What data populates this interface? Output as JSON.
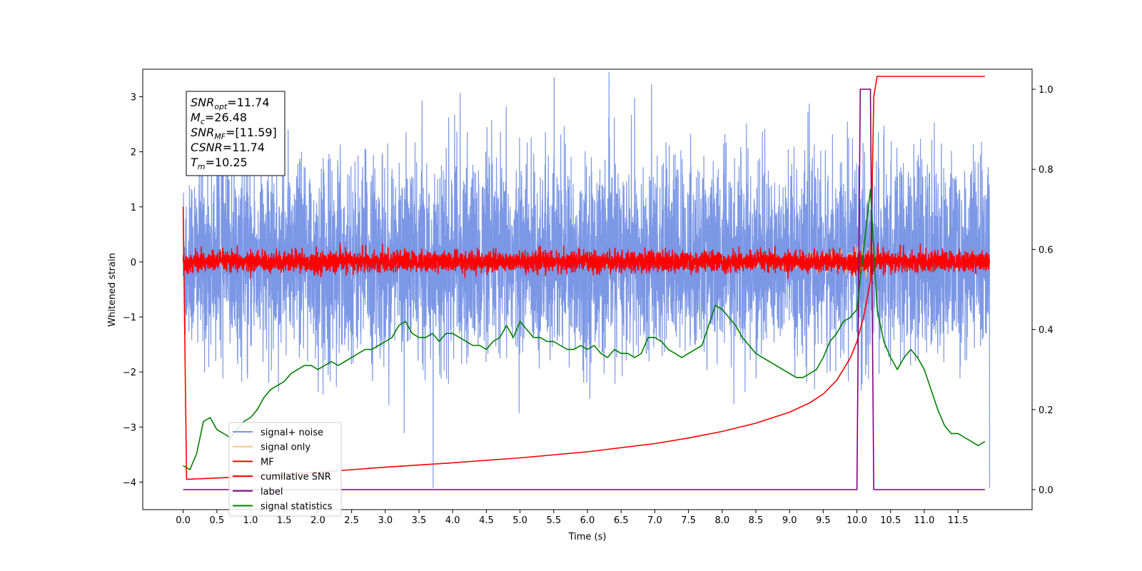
{
  "chart_data": {
    "type": "line",
    "xlabel": "Time (s)",
    "ylabel": "Whitened strain",
    "x_range": [
      0,
      12
    ],
    "xlim": [
      -0.6,
      12.6
    ],
    "ylim_left": [
      -4.5,
      3.5
    ],
    "ylim_right": [
      -0.05,
      1.05
    ],
    "x_ticks": [
      "0.0",
      "0.5",
      "1.0",
      "1.5",
      "2.0",
      "2.5",
      "3.0",
      "3.5",
      "4.0",
      "4.5",
      "5.0",
      "5.5",
      "6.0",
      "6.5",
      "7.0",
      "7.5",
      "8.0",
      "8.5",
      "9.0",
      "9.5",
      "10.0",
      "10.5",
      "11.0",
      "11.5"
    ],
    "y_ticks_left": [
      "−4",
      "−3",
      "−2",
      "−1",
      "0",
      "1",
      "2",
      "3"
    ],
    "y_ticks_right": [
      "0.0",
      "0.2",
      "0.4",
      "0.6",
      "0.8",
      "1.0"
    ],
    "grid": false,
    "legend_position": "lower-left",
    "series": [
      {
        "name": "signal+ noise",
        "color": "#7b97e6",
        "axis": "left",
        "kind": "noise",
        "band_lower": [
          -1.1,
          -1.9
        ],
        "band_upper": [
          1.2,
          2.3
        ],
        "extremes": [
          -4.1,
          3.35
        ]
      },
      {
        "name": "signal only",
        "color": "#f5c77e",
        "axis": "left",
        "kind": "chirp",
        "merger_time": 10.25,
        "peak_amplitude": 0.9
      },
      {
        "name": "MF",
        "color": "#ff0000",
        "axis": "left",
        "kind": "noise",
        "band_lower": [
          -0.12,
          -0.06
        ],
        "band_upper": [
          0.12,
          0.3
        ]
      },
      {
        "name": "cumilative SNR",
        "color": "#ff0000",
        "axis": "left",
        "x": [
          0.0,
          0.05,
          1.0,
          2.0,
          3.0,
          4.0,
          5.0,
          6.0,
          7.0,
          7.5,
          8.0,
          8.5,
          9.0,
          9.3,
          9.5,
          9.7,
          9.9,
          10.0,
          10.1,
          10.2,
          10.25,
          10.3,
          11.9
        ],
        "y": [
          1.0,
          -3.95,
          -3.9,
          -3.82,
          -3.73,
          -3.65,
          -3.56,
          -3.45,
          -3.3,
          -3.2,
          -3.08,
          -2.93,
          -2.73,
          -2.56,
          -2.4,
          -2.15,
          -1.75,
          -1.45,
          -1.0,
          -0.35,
          3.0,
          3.37,
          3.37
        ]
      },
      {
        "name": "label",
        "color": "#800080",
        "axis": "right",
        "x": [
          0.0,
          10.0,
          10.05,
          10.2,
          10.25,
          11.9
        ],
        "y": [
          0.0,
          0.0,
          1.0,
          1.0,
          0.0,
          0.0
        ]
      },
      {
        "name": "signal statistics",
        "color": "#008000",
        "axis": "right",
        "x": [
          0.0,
          0.1,
          0.2,
          0.3,
          0.4,
          0.5,
          0.6,
          0.7,
          0.8,
          0.9,
          1.0,
          1.1,
          1.2,
          1.3,
          1.4,
          1.5,
          1.6,
          1.7,
          1.8,
          1.9,
          2.0,
          2.1,
          2.2,
          2.3,
          2.4,
          2.5,
          2.6,
          2.7,
          2.8,
          2.9,
          3.0,
          3.1,
          3.2,
          3.3,
          3.4,
          3.5,
          3.6,
          3.7,
          3.8,
          3.9,
          4.0,
          4.1,
          4.2,
          4.3,
          4.4,
          4.5,
          4.6,
          4.7,
          4.8,
          4.9,
          5.0,
          5.1,
          5.2,
          5.3,
          5.4,
          5.5,
          5.6,
          5.7,
          5.8,
          5.9,
          6.0,
          6.1,
          6.2,
          6.3,
          6.4,
          6.5,
          6.6,
          6.7,
          6.8,
          6.9,
          7.0,
          7.1,
          7.2,
          7.3,
          7.4,
          7.5,
          7.6,
          7.7,
          7.8,
          7.9,
          8.0,
          8.1,
          8.2,
          8.3,
          8.4,
          8.5,
          8.6,
          8.7,
          8.8,
          8.9,
          9.0,
          9.1,
          9.2,
          9.3,
          9.4,
          9.5,
          9.6,
          9.7,
          9.8,
          9.9,
          10.0,
          10.1,
          10.2,
          10.3,
          10.4,
          10.5,
          10.6,
          10.7,
          10.8,
          10.9,
          11.0,
          11.1,
          11.2,
          11.3,
          11.4,
          11.5,
          11.6,
          11.7,
          11.8,
          11.9
        ],
        "y": [
          0.06,
          0.05,
          0.09,
          0.17,
          0.18,
          0.15,
          0.14,
          0.13,
          0.15,
          0.17,
          0.18,
          0.2,
          0.23,
          0.25,
          0.26,
          0.27,
          0.29,
          0.3,
          0.31,
          0.31,
          0.3,
          0.31,
          0.32,
          0.31,
          0.32,
          0.33,
          0.34,
          0.35,
          0.35,
          0.36,
          0.37,
          0.38,
          0.41,
          0.42,
          0.39,
          0.38,
          0.38,
          0.39,
          0.37,
          0.39,
          0.39,
          0.38,
          0.37,
          0.36,
          0.36,
          0.35,
          0.37,
          0.38,
          0.41,
          0.38,
          0.42,
          0.4,
          0.38,
          0.38,
          0.37,
          0.37,
          0.36,
          0.35,
          0.35,
          0.36,
          0.35,
          0.36,
          0.34,
          0.33,
          0.35,
          0.34,
          0.34,
          0.33,
          0.34,
          0.38,
          0.38,
          0.37,
          0.35,
          0.34,
          0.33,
          0.34,
          0.35,
          0.36,
          0.41,
          0.46,
          0.45,
          0.43,
          0.41,
          0.38,
          0.36,
          0.34,
          0.33,
          0.32,
          0.31,
          0.3,
          0.29,
          0.28,
          0.28,
          0.29,
          0.3,
          0.33,
          0.37,
          0.39,
          0.42,
          0.43,
          0.45,
          0.6,
          0.75,
          0.45,
          0.37,
          0.33,
          0.3,
          0.33,
          0.35,
          0.33,
          0.3,
          0.25,
          0.2,
          0.16,
          0.14,
          0.14,
          0.13,
          0.12,
          0.11,
          0.12
        ]
      }
    ],
    "annotations": [
      {
        "label": "SNR",
        "sub": "opt",
        "value": "=11.74"
      },
      {
        "label": "M",
        "sub": "c",
        "value": "=26.48"
      },
      {
        "label": "SNR",
        "sub": "MF",
        "value": "=[11.59]"
      },
      {
        "label": "CSNR",
        "sub": "",
        "value": "=11.74"
      },
      {
        "label": "T",
        "sub": "m",
        "value": "=10.25"
      }
    ]
  }
}
